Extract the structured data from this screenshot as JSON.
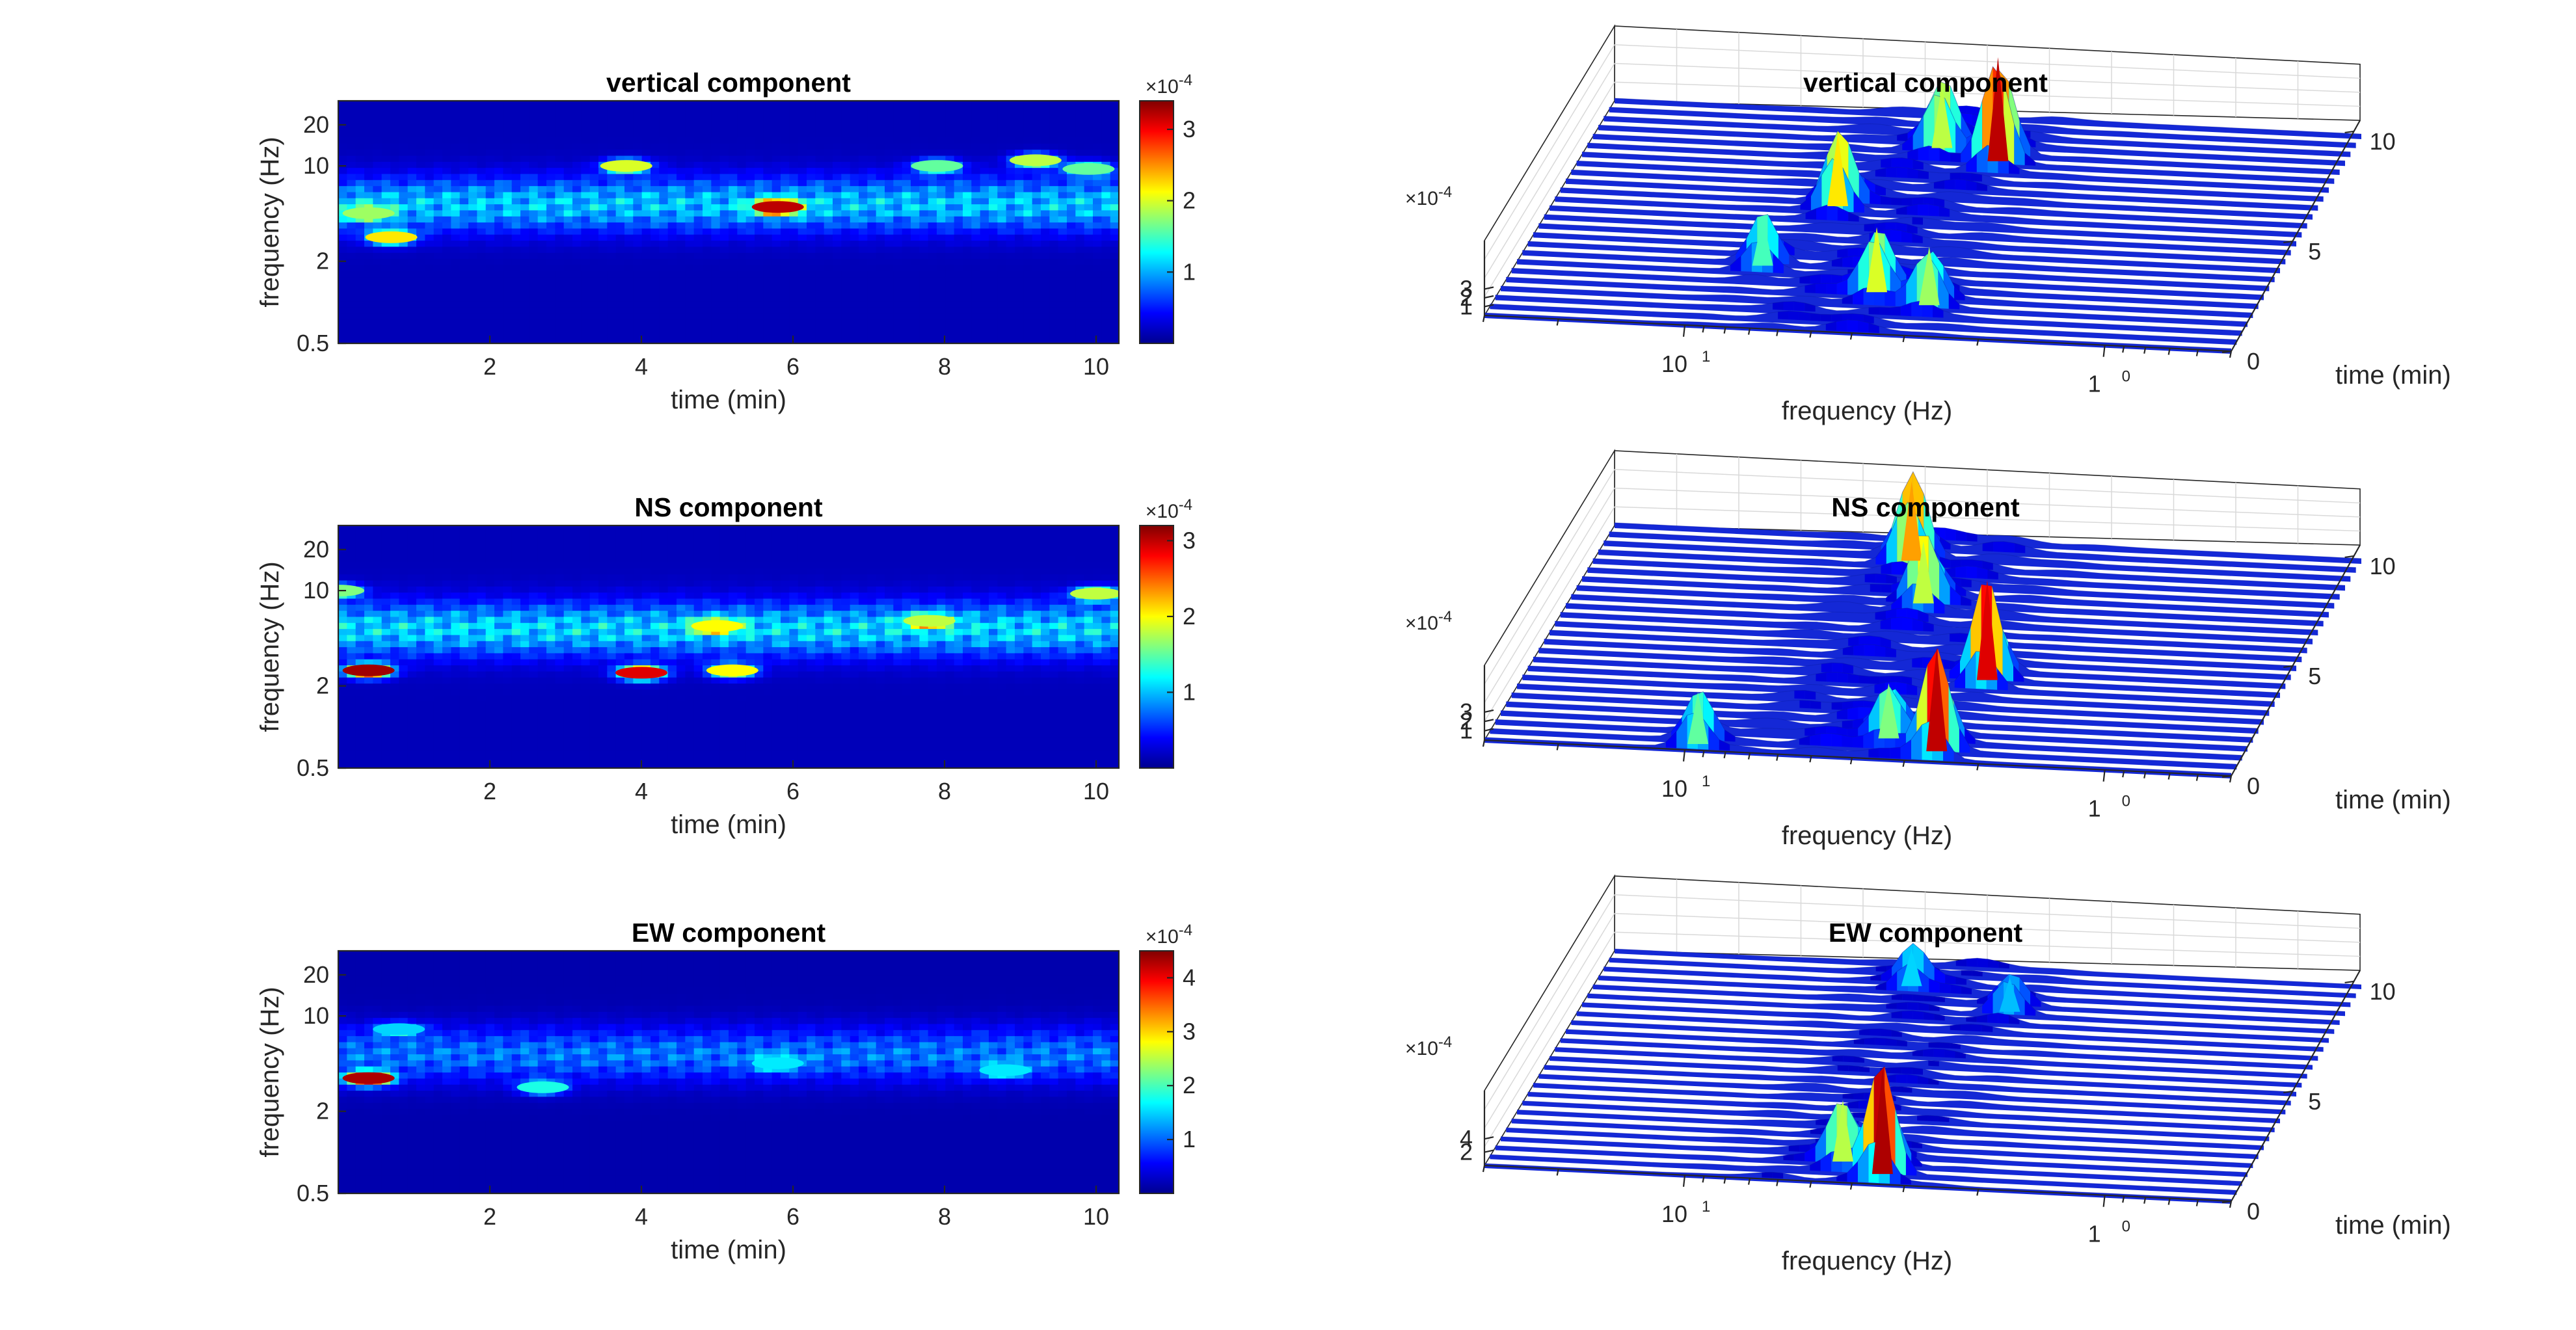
{
  "chart_data": [
    {
      "type": "heatmap",
      "title": "vertical component",
      "xlabel": "time (min)",
      "ylabel": "frequency (Hz)",
      "xticks": [
        "2",
        "4",
        "6",
        "8",
        "10"
      ],
      "yticks": [
        "0.5",
        "2",
        "10",
        "20"
      ],
      "xlim": [
        0,
        10.3
      ],
      "ylim": [
        0.5,
        30
      ],
      "yscale": "log",
      "colorbar": {
        "exponent_label": "×10",
        "exponent": "-4",
        "ticks": [
          "1",
          "2",
          "3"
        ],
        "max": 3.4
      },
      "hotspots": [
        {
          "t": 5.8,
          "f": 5.0,
          "v": 3.2
        },
        {
          "t": 0.7,
          "f": 3.0,
          "v": 2.2
        },
        {
          "t": 0.4,
          "f": 4.5,
          "v": 1.8
        },
        {
          "t": 3.8,
          "f": 10.0,
          "v": 2.0
        },
        {
          "t": 9.2,
          "f": 11.0,
          "v": 1.9
        },
        {
          "t": 9.9,
          "f": 9.5,
          "v": 1.6
        },
        {
          "t": 7.9,
          "f": 10.0,
          "v": 1.6
        }
      ]
    },
    {
      "type": "heatmap",
      "title": "NS component",
      "xlabel": "time (min)",
      "ylabel": "frequency (Hz)",
      "xticks": [
        "2",
        "4",
        "6",
        "8",
        "10"
      ],
      "yticks": [
        "0.5",
        "2",
        "10",
        "20"
      ],
      "xlim": [
        0,
        10.3
      ],
      "ylim": [
        0.5,
        30
      ],
      "yscale": "log",
      "colorbar": {
        "exponent_label": "×10",
        "exponent": "-4",
        "ticks": [
          "1",
          "2",
          "3"
        ],
        "max": 3.2
      },
      "hotspots": [
        {
          "t": 0.4,
          "f": 2.6,
          "v": 3.1
        },
        {
          "t": 4.0,
          "f": 2.5,
          "v": 2.9
        },
        {
          "t": 5.2,
          "f": 2.6,
          "v": 2.0
        },
        {
          "t": 5.0,
          "f": 5.5,
          "v": 2.0
        },
        {
          "t": 7.8,
          "f": 6.0,
          "v": 1.8
        },
        {
          "t": 10.0,
          "f": 9.5,
          "v": 1.8
        },
        {
          "t": 0.0,
          "f": 10.0,
          "v": 1.6
        }
      ]
    },
    {
      "type": "heatmap",
      "title": "EW component",
      "xlabel": "time (min)",
      "ylabel": "frequency (Hz)",
      "xticks": [
        "2",
        "4",
        "6",
        "8",
        "10"
      ],
      "yticks": [
        "0.5",
        "2",
        "10",
        "20"
      ],
      "xlim": [
        0,
        10.3
      ],
      "ylim": [
        0.5,
        30
      ],
      "yscale": "log",
      "colorbar": {
        "exponent_label": "×10",
        "exponent": "-4",
        "ticks": [
          "1",
          "2",
          "3",
          "4"
        ],
        "max": 4.5
      },
      "hotspots": [
        {
          "t": 0.4,
          "f": 3.5,
          "v": 4.3
        },
        {
          "t": 2.7,
          "f": 3.0,
          "v": 1.8
        },
        {
          "t": 5.8,
          "f": 4.5,
          "v": 1.6
        },
        {
          "t": 8.8,
          "f": 4.0,
          "v": 1.6
        },
        {
          "t": 0.8,
          "f": 8.0,
          "v": 1.5
        }
      ]
    },
    {
      "type": "area",
      "title": "vertical component",
      "xlabel": "frequency (Hz)",
      "ylabel": "time (min)",
      "xscale": "log",
      "xticks": [
        "10",
        "1"
      ],
      "xtick_exponents": [
        "1",
        "0"
      ],
      "yticks": [
        "0",
        "5",
        "10"
      ],
      "zticks": [
        "1",
        "2",
        "3"
      ],
      "z_exponent_label": "×10",
      "z_exponent": "-4",
      "zmax": 3.4,
      "peaks": [
        {
          "f": 3.2,
          "t": 8.5,
          "v": 3.2
        },
        {
          "f": 4.0,
          "t": 2.0,
          "v": 2.0
        },
        {
          "f": 6.5,
          "t": 6.0,
          "v": 2.2
        },
        {
          "f": 4.5,
          "t": 9.0,
          "v": 1.9
        },
        {
          "f": 2.9,
          "t": 1.5,
          "v": 1.8
        },
        {
          "f": 8.0,
          "t": 3.0,
          "v": 1.5
        }
      ]
    },
    {
      "type": "area",
      "title": "NS component",
      "xlabel": "frequency (Hz)",
      "ylabel": "time (min)",
      "xscale": "log",
      "xticks": [
        "10",
        "1"
      ],
      "xtick_exponents": [
        "1",
        "0"
      ],
      "yticks": [
        "0",
        "5",
        "10"
      ],
      "zticks": [
        "1",
        "2",
        "3"
      ],
      "z_exponent_label": "×10",
      "z_exponent": "-4",
      "zmax": 3.2,
      "peaks": [
        {
          "f": 2.6,
          "t": 0.5,
          "v": 3.0
        },
        {
          "f": 2.5,
          "t": 4.0,
          "v": 2.9
        },
        {
          "f": 5.5,
          "t": 9.5,
          "v": 2.3
        },
        {
          "f": 4.5,
          "t": 7.5,
          "v": 1.8
        },
        {
          "f": 9.5,
          "t": 0.3,
          "v": 1.5
        },
        {
          "f": 3.5,
          "t": 1.0,
          "v": 1.6
        }
      ]
    },
    {
      "type": "area",
      "title": "EW component",
      "xlabel": "frequency (Hz)",
      "ylabel": "time (min)",
      "xscale": "log",
      "xticks": [
        "10",
        "1"
      ],
      "xtick_exponents": [
        "1",
        "0"
      ],
      "yticks": [
        "0",
        "5",
        "10"
      ],
      "zticks": [
        "2",
        "4"
      ],
      "z_exponent_label": "×10",
      "z_exponent": "-4",
      "zmax": 4.5,
      "peaks": [
        {
          "f": 3.5,
          "t": 0.5,
          "v": 4.3
        },
        {
          "f": 4.5,
          "t": 1.0,
          "v": 2.5
        },
        {
          "f": 5.5,
          "t": 9.5,
          "v": 1.5
        },
        {
          "f": 3.0,
          "t": 8.5,
          "v": 1.4
        }
      ]
    }
  ],
  "colormap": [
    "#00008f",
    "#0000ff",
    "#0080ff",
    "#00ffff",
    "#80ff80",
    "#ffff00",
    "#ff8000",
    "#ff0000",
    "#800000"
  ]
}
